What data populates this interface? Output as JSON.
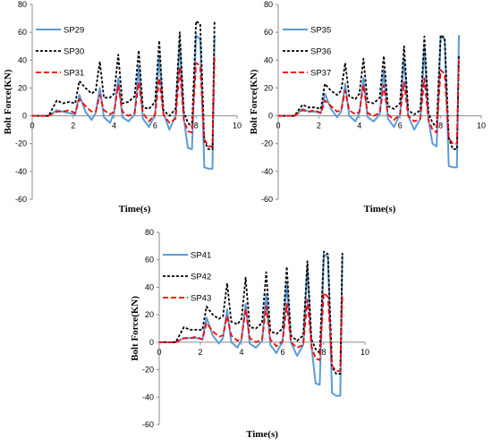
{
  "chart_data": [
    {
      "type": "line",
      "xlabel": "Time(s)",
      "ylabel": "Bolt Force(KN)",
      "xlim": [
        0,
        10
      ],
      "ylim": [
        -60,
        80
      ],
      "xticks": [
        "0",
        "2",
        "4",
        "6",
        "8",
        "10"
      ],
      "yticks": [
        "80",
        "60",
        "40",
        "20",
        "0",
        "-20",
        "-40",
        "-60"
      ],
      "legend_position": "top-left",
      "series": [
        {
          "name": "SP29",
          "color": "#5b9bd5",
          "dash": "solid",
          "x": [
            0,
            0.8,
            1.2,
            1.5,
            1.8,
            2.1,
            2.3,
            2.6,
            2.9,
            3.1,
            3.3,
            3.5,
            3.8,
            4.0,
            4.2,
            4.4,
            4.7,
            5.0,
            5.2,
            5.4,
            5.7,
            6.0,
            6.2,
            6.4,
            6.7,
            7.0,
            7.2,
            7.4,
            7.6,
            7.8,
            8.0,
            8.2,
            8.4,
            8.6,
            8.8,
            8.9
          ],
          "y": [
            0,
            0,
            4,
            3,
            2,
            1,
            15,
            3,
            -3,
            2,
            20,
            -1,
            -5,
            2,
            27,
            -1,
            -4,
            1,
            35,
            -2,
            -8,
            1,
            42,
            2,
            -10,
            0,
            52,
            -2,
            -23,
            -24,
            58,
            55,
            -37,
            -38,
            -38,
            58
          ]
        },
        {
          "name": "SP30",
          "color": "#000000",
          "dash": "dashed",
          "x": [
            0,
            0.8,
            1.2,
            1.5,
            1.8,
            2.1,
            2.3,
            2.6,
            2.9,
            3.1,
            3.3,
            3.5,
            3.8,
            4.0,
            4.2,
            4.4,
            4.7,
            5.0,
            5.2,
            5.4,
            5.7,
            6.0,
            6.2,
            6.4,
            6.7,
            7.0,
            7.2,
            7.4,
            7.6,
            7.8,
            8.0,
            8.2,
            8.4,
            8.6,
            8.8,
            8.9
          ],
          "y": [
            0,
            0,
            11,
            9,
            10,
            9,
            25,
            20,
            16,
            18,
            39,
            13,
            13,
            16,
            44,
            9,
            10,
            14,
            47,
            6,
            5,
            10,
            54,
            4,
            0,
            5,
            60,
            3,
            -5,
            -8,
            68,
            66,
            -18,
            -24,
            -24,
            68
          ]
        },
        {
          "name": "SP31",
          "color": "#ff0000",
          "dash": "dashed",
          "x": [
            0,
            0.8,
            1.2,
            1.5,
            1.8,
            2.1,
            2.3,
            2.6,
            2.9,
            3.1,
            3.3,
            3.5,
            3.8,
            4.0,
            4.2,
            4.4,
            4.7,
            5.0,
            5.2,
            5.4,
            5.7,
            6.0,
            6.2,
            6.4,
            6.7,
            7.0,
            7.2,
            7.4,
            7.6,
            7.8,
            8.0,
            8.2,
            8.4,
            8.6,
            8.8,
            8.9
          ],
          "y": [
            0,
            0,
            3,
            3,
            4,
            2,
            12,
            7,
            3,
            3,
            15,
            4,
            1,
            3,
            22,
            3,
            0,
            2,
            24,
            2,
            -4,
            1,
            27,
            1,
            -5,
            -2,
            35,
            -3,
            -11,
            -12,
            38,
            36,
            -17,
            -22,
            -22,
            42
          ]
        }
      ]
    },
    {
      "type": "line",
      "xlabel": "Time(s)",
      "ylabel": "Bolt Force(KN)",
      "xlim": [
        0,
        10
      ],
      "ylim": [
        -60,
        80
      ],
      "xticks": [
        "0",
        "2",
        "4",
        "6",
        "8",
        "10"
      ],
      "yticks": [
        "80",
        "60",
        "40",
        "20",
        "0",
        "-20",
        "-40",
        "-60"
      ],
      "legend_position": "top-left",
      "series": [
        {
          "name": "SP35",
          "color": "#5b9bd5",
          "dash": "solid",
          "x": [
            0,
            0.8,
            1.2,
            1.5,
            1.8,
            2.1,
            2.3,
            2.6,
            2.9,
            3.1,
            3.3,
            3.5,
            3.8,
            4.0,
            4.2,
            4.4,
            4.7,
            5.0,
            5.2,
            5.4,
            5.7,
            6.0,
            6.2,
            6.4,
            6.7,
            7.0,
            7.2,
            7.4,
            7.6,
            7.8,
            8.0,
            8.2,
            8.4,
            8.6,
            8.8,
            8.9
          ],
          "y": [
            0,
            0,
            5,
            3,
            3,
            2,
            16,
            5,
            -1,
            3,
            23,
            0,
            -4,
            2,
            27,
            -1,
            -4,
            1,
            33,
            -2,
            -8,
            1,
            41,
            0,
            -10,
            -2,
            49,
            -3,
            -20,
            -22,
            57,
            55,
            -36,
            -37,
            -37,
            58
          ]
        },
        {
          "name": "SP36",
          "color": "#000000",
          "dash": "dashed",
          "x": [
            0,
            0.8,
            1.2,
            1.5,
            1.8,
            2.1,
            2.3,
            2.6,
            2.9,
            3.1,
            3.3,
            3.5,
            3.8,
            4.0,
            4.2,
            4.4,
            4.7,
            5.0,
            5.2,
            5.4,
            5.7,
            6.0,
            6.2,
            6.4,
            6.7,
            7.0,
            7.2,
            7.4,
            7.6,
            7.8,
            8.0,
            8.2,
            8.4,
            8.6,
            8.8,
            8.9
          ],
          "y": [
            0,
            0,
            8,
            6,
            6,
            5,
            23,
            18,
            15,
            18,
            38,
            14,
            12,
            16,
            41,
            10,
            9,
            13,
            43,
            7,
            5,
            9,
            50,
            4,
            1,
            4,
            57,
            2,
            -5,
            -8,
            58,
            56,
            -16,
            -24,
            -24,
            44
          ]
        },
        {
          "name": "SP37",
          "color": "#ff0000",
          "dash": "dashed",
          "x": [
            0,
            0.8,
            1.2,
            1.5,
            1.8,
            2.1,
            2.3,
            2.6,
            2.9,
            3.1,
            3.3,
            3.5,
            3.8,
            4.0,
            4.2,
            4.4,
            4.7,
            5.0,
            5.2,
            5.4,
            5.7,
            6.0,
            6.2,
            6.4,
            6.7,
            7.0,
            7.2,
            7.4,
            7.6,
            7.8,
            8.0,
            8.2,
            8.4,
            8.6,
            8.8,
            8.9
          ],
          "y": [
            0,
            0,
            4,
            3,
            4,
            2,
            11,
            7,
            3,
            4,
            18,
            4,
            1,
            3,
            22,
            2,
            0,
            2,
            22,
            1,
            -3,
            1,
            24,
            0,
            -4,
            -2,
            27,
            -3,
            -10,
            -12,
            33,
            30,
            -16,
            -20,
            -20,
            40
          ]
        }
      ]
    },
    {
      "type": "line",
      "xlabel": "Time(s)",
      "ylabel": "Bolt Force(KN)",
      "xlim": [
        0,
        10
      ],
      "ylim": [
        -60,
        80
      ],
      "xticks": [
        "0",
        "2",
        "4",
        "6",
        "8",
        "10"
      ],
      "yticks": [
        "80",
        "60",
        "40",
        "20",
        "0",
        "-20",
        "-40",
        "-60"
      ],
      "legend_position": "top-left",
      "series": [
        {
          "name": "SP41",
          "color": "#5b9bd5",
          "dash": "solid",
          "x": [
            0,
            0.8,
            1.2,
            1.5,
            1.8,
            2.1,
            2.3,
            2.6,
            2.9,
            3.1,
            3.3,
            3.5,
            3.8,
            4.0,
            4.2,
            4.4,
            4.7,
            5.0,
            5.2,
            5.4,
            5.7,
            6.0,
            6.2,
            6.4,
            6.7,
            7.0,
            7.2,
            7.4,
            7.6,
            7.8,
            8.0,
            8.2,
            8.4,
            8.6,
            8.8,
            8.9
          ],
          "y": [
            0,
            0,
            3,
            3,
            3,
            2,
            18,
            5,
            -1,
            3,
            24,
            0,
            -4,
            2,
            28,
            -1,
            -4,
            1,
            35,
            -2,
            -8,
            1,
            43,
            0,
            -10,
            -2,
            55,
            -3,
            -30,
            -31,
            64,
            62,
            -37,
            -39,
            -39,
            64
          ]
        },
        {
          "name": "SP42",
          "color": "#000000",
          "dash": "dashed",
          "x": [
            0,
            0.8,
            1.2,
            1.5,
            1.8,
            2.1,
            2.3,
            2.6,
            2.9,
            3.1,
            3.3,
            3.5,
            3.8,
            4.0,
            4.2,
            4.4,
            4.7,
            5.0,
            5.2,
            5.4,
            5.7,
            6.0,
            6.2,
            6.4,
            6.7,
            7.0,
            7.2,
            7.4,
            7.6,
            7.8,
            8.0,
            8.2,
            8.4,
            8.6,
            8.8,
            8.9
          ],
          "y": [
            0,
            0,
            11,
            9,
            9,
            9,
            26,
            20,
            17,
            19,
            43,
            15,
            13,
            17,
            47,
            11,
            10,
            14,
            51,
            8,
            6,
            10,
            55,
            5,
            1,
            5,
            59,
            2,
            -5,
            -8,
            66,
            64,
            -18,
            -23,
            -23,
            65
          ]
        },
        {
          "name": "SP43",
          "color": "#ff0000",
          "dash": "dashed",
          "x": [
            0,
            0.8,
            1.2,
            1.5,
            1.8,
            2.1,
            2.3,
            2.6,
            2.9,
            3.1,
            3.3,
            3.5,
            3.8,
            4.0,
            4.2,
            4.4,
            4.7,
            5.0,
            5.2,
            5.4,
            5.7,
            6.0,
            6.2,
            6.4,
            6.7,
            7.0,
            7.2,
            7.4,
            7.6,
            7.8,
            8.0,
            8.2,
            8.4,
            8.6,
            8.8,
            8.9
          ],
          "y": [
            0,
            0,
            3,
            3,
            4,
            2,
            14,
            8,
            4,
            5,
            19,
            5,
            1,
            3,
            24,
            3,
            0,
            2,
            26,
            2,
            -3,
            1,
            28,
            0,
            -4,
            -2,
            31,
            -3,
            -12,
            -13,
            36,
            33,
            -17,
            -21,
            -21,
            34
          ]
        }
      ]
    }
  ]
}
